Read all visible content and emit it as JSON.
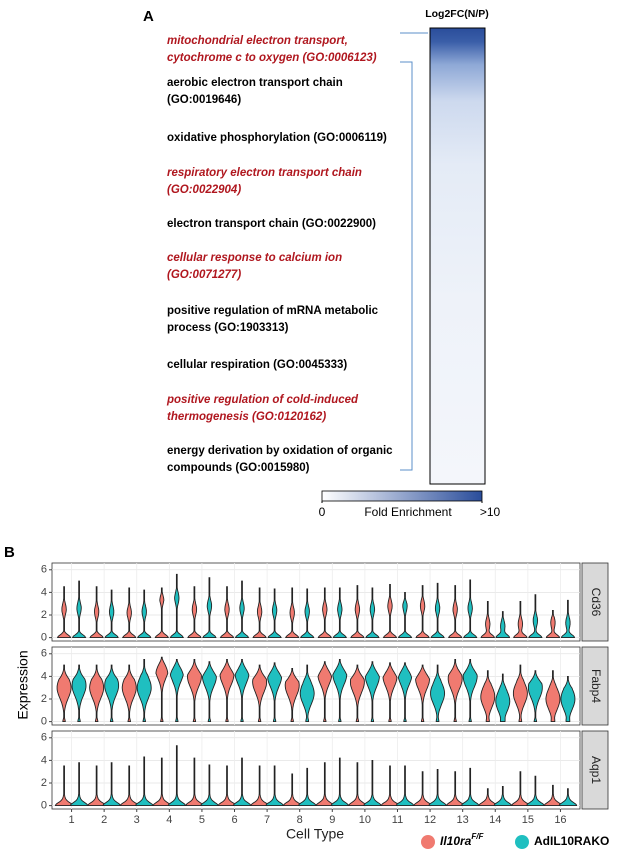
{
  "chart_data": [
    {
      "type": "heatmap",
      "panel": "A",
      "title": "Log2FC(N/P)",
      "terms": [
        {
          "lines": [
            "mitochondrial electron transport,",
            "cytochrome c to oxygen (GO:0006123)"
          ],
          "highlight": true
        },
        {
          "lines": [
            "aerobic electron transport chain",
            "(GO:0019646)"
          ],
          "highlight": false
        },
        {
          "lines": [
            "oxidative phosphorylation (GO:0006119)"
          ],
          "highlight": false
        },
        {
          "lines": [
            "respiratory electron transport chain",
            "(GO:0022904)"
          ],
          "highlight": true
        },
        {
          "lines": [
            "electron transport chain (GO:0022900)"
          ],
          "highlight": false
        },
        {
          "lines": [
            "cellular response to calcium ion",
            "(GO:0071277)"
          ],
          "highlight": true
        },
        {
          "lines": [
            "positive regulation of mRNA metabolic",
            "process (GO:1903313)"
          ],
          "highlight": false
        },
        {
          "lines": [
            "cellular respiration (GO:0045333)"
          ],
          "highlight": false
        },
        {
          "lines": [
            "positive regulation of cold-induced",
            "thermogenesis (GO:0120162)"
          ],
          "highlight": true
        },
        {
          "lines": [
            "energy derivation by oxidation of organic",
            "compounds (GO:0015980)"
          ],
          "highlight": false
        }
      ],
      "colorbar": {
        "label": "Fold Enrichment",
        "lim": [
          0,
          10
        ],
        "ticks": [
          0,
          {
            "value": 10,
            "label": ">10"
          }
        ],
        "colors": [
          "#ffffff",
          "#2a4d9b"
        ]
      }
    },
    {
      "type": "violin",
      "panel": "B",
      "ylabel": "Expression",
      "xlabel": "Cell Type",
      "categories": [
        "1",
        "2",
        "3",
        "4",
        "5",
        "6",
        "7",
        "8",
        "9",
        "10",
        "11",
        "12",
        "13",
        "14",
        "15",
        "16"
      ],
      "ylim": [
        -0.3,
        6.6
      ],
      "yticks": [
        0,
        2,
        4,
        6
      ],
      "legend": [
        {
          "name": "Il10ra",
          "sup": "F/F",
          "color": "#f07a70"
        },
        {
          "name": "AdIL10RAKO",
          "color": "#1fbfc0"
        }
      ],
      "facets": [
        {
          "name": "Cd36",
          "zero_bulb": true,
          "series": [
            {
              "values": [
                4.5,
                4.5,
                4.4,
                4.4,
                4.5,
                4.5,
                4.4,
                4.4,
                4.4,
                4.6,
                4.7,
                4.6,
                4.6,
                3.2,
                3.2,
                2.4
              ],
              "modes": [
                2.5,
                2.3,
                2.2,
                3.5,
                2.5,
                2.5,
                2.3,
                2.2,
                2.5,
                2.5,
                2.8,
                2.8,
                2.5,
                1.2,
                1.2,
                1.3
              ]
            },
            {
              "values": [
                5.0,
                4.2,
                4.2,
                5.6,
                5.3,
                5.0,
                4.3,
                4.3,
                4.4,
                4.4,
                4.0,
                4.8,
                5.1,
                2.3,
                3.8,
                3.3
              ],
              "modes": [
                2.6,
                2.3,
                2.3,
                3.5,
                2.8,
                2.6,
                2.4,
                2.3,
                2.5,
                2.5,
                2.8,
                2.6,
                2.6,
                1.0,
                1.5,
                1.3
              ]
            }
          ]
        },
        {
          "name": "Fabp4",
          "zero_bulb": false,
          "series": [
            {
              "values": [
                5.0,
                5.0,
                5.0,
                5.7,
                5.5,
                5.5,
                5.0,
                4.7,
                5.3,
                5.0,
                5.2,
                5.0,
                5.5,
                4.5,
                5.0,
                4.5
              ],
              "modes": [
                3.0,
                3.0,
                3.0,
                4.8,
                4.0,
                4.2,
                3.5,
                3.2,
                4.2,
                3.5,
                4.0,
                3.8,
                3.8,
                2.2,
                2.5,
                2.0
              ]
            },
            {
              "values": [
                5.0,
                5.0,
                5.5,
                5.5,
                5.3,
                5.5,
                5.2,
                5.0,
                5.5,
                5.3,
                5.2,
                5.0,
                5.5,
                4.2,
                4.5,
                4.0
              ],
              "modes": [
                3.2,
                3.2,
                3.0,
                4.5,
                4.0,
                4.3,
                4.0,
                2.5,
                4.2,
                4.0,
                4.2,
                2.5,
                4.0,
                1.8,
                3.0,
                2.0
              ]
            }
          ]
        },
        {
          "name": "Aqp1",
          "zero_bulb": true,
          "series": [
            {
              "values": [
                3.5,
                3.5,
                3.5,
                4.2,
                4.2,
                3.5,
                3.5,
                2.8,
                3.8,
                3.8,
                3.5,
                3.0,
                3.0,
                1.5,
                3.0,
                1.8
              ],
              "modes": [
                0.1,
                0.1,
                0.1,
                0.1,
                0.1,
                0.1,
                0.1,
                0.1,
                0.1,
                0.1,
                0.1,
                0.1,
                0.1,
                0.1,
                0.1,
                0.1
              ]
            },
            {
              "values": [
                3.8,
                3.8,
                4.3,
                5.3,
                3.6,
                4.2,
                3.5,
                3.3,
                4.2,
                4.0,
                3.5,
                3.2,
                3.3,
                1.7,
                2.6,
                1.5
              ],
              "modes": [
                0.1,
                0.1,
                0.1,
                0.1,
                0.1,
                0.1,
                0.1,
                0.1,
                0.1,
                0.1,
                0.1,
                0.1,
                0.1,
                0.1,
                0.1,
                0.1
              ]
            }
          ]
        }
      ]
    }
  ]
}
